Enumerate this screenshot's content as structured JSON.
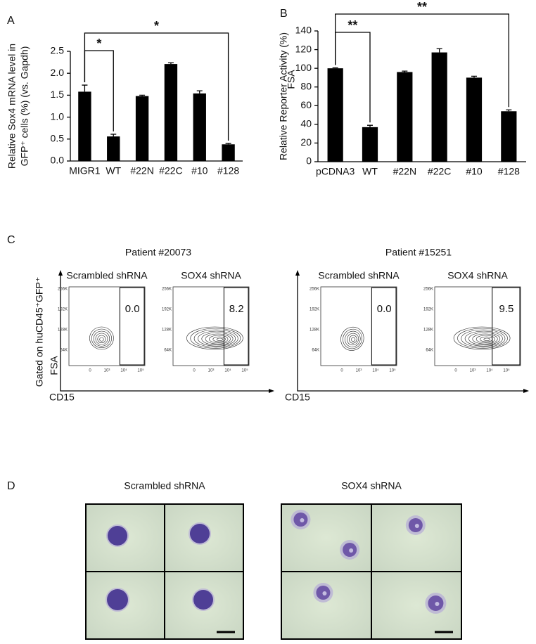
{
  "chart_data": [
    {
      "type": "bar",
      "panel": "A",
      "ylabel": [
        "Relative Sox4 mRNA level in",
        "GFP⁺ cells (%) (vs. Gapdh)"
      ],
      "categories": [
        "MIGR1",
        "WT",
        "#22N",
        "#22C",
        "#10",
        "#128"
      ],
      "values": [
        1.58,
        0.56,
        1.48,
        2.21,
        1.54,
        0.38
      ],
      "errors": [
        0.15,
        0.05,
        0.02,
        0.03,
        0.06,
        0.02
      ],
      "color": "#000000",
      "ylim": [
        0,
        2.5
      ],
      "yticks": [
        {
          "value": 0,
          "label": "0.0"
        },
        0.5,
        {
          "value": 1,
          "label": "1.0"
        },
        1.5,
        {
          "value": 2,
          "label": "2.0"
        },
        2.5
      ],
      "significance": [
        "*",
        "*"
      ]
    },
    {
      "type": "bar",
      "panel": "B",
      "ylabel": [
        "Relative Reporter Activity (%)"
      ],
      "categories": [
        "pCDNA3",
        "WT",
        "#22N",
        "#22C",
        "#10",
        "#128"
      ],
      "values": [
        100,
        37,
        96,
        117,
        90,
        54
      ],
      "errors": [
        0.5,
        2,
        1,
        4,
        1.5,
        1.5
      ],
      "color": "#000000",
      "ylim": [
        0,
        140
      ],
      "yticks": [
        0,
        20,
        40,
        60,
        80,
        100,
        120,
        140
      ],
      "significance": [
        "**",
        "**"
      ]
    }
  ],
  "flow": {
    "panel": "C",
    "gate_label": "Gated on huCD45⁺GFP⁺",
    "axis_y": "FSA",
    "axis_x": "CD15",
    "y_ticks": [
      "256K",
      "192K",
      "128K",
      "64K"
    ],
    "x_ticks": [
      "0",
      "10³",
      "10⁴",
      "10⁵"
    ],
    "patients": [
      {
        "name": "Patient #20073",
        "plots": [
          {
            "label": "Scrambled shRNA",
            "percent": "0.0"
          },
          {
            "label": "SOX4 shRNA",
            "percent": "8.2"
          }
        ]
      },
      {
        "name": "Patient #15251",
        "plots": [
          {
            "label": "Scrambled shRNA",
            "percent": "0.0"
          },
          {
            "label": "SOX4 shRNA",
            "percent": "9.5"
          }
        ]
      }
    ]
  },
  "micrographs": {
    "panel": "D",
    "groups": [
      "Scrambled shRNA",
      "SOX4 shRNA"
    ]
  }
}
